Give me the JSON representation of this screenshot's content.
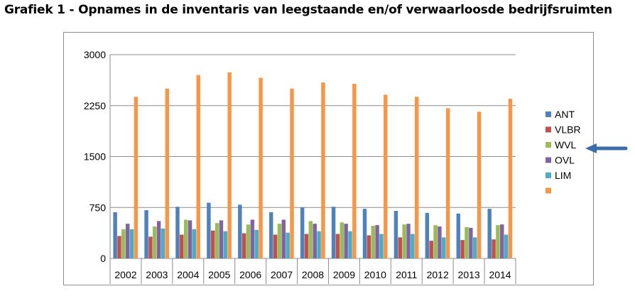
{
  "title": "Grafiek 1 - Opnames in de inventaris van leegstaande en/of verwaarloosde bedrijfsruimten",
  "chart_data": {
    "type": "bar",
    "categories": [
      "2002",
      "2003",
      "2004",
      "2005",
      "2006",
      "2007",
      "2008",
      "2009",
      "2010",
      "2011",
      "2012",
      "2013",
      "2014"
    ],
    "ylim": [
      0,
      3000
    ],
    "yticks": [
      "0",
      "750",
      "1500",
      "2250",
      "3000"
    ],
    "ytick_values": [
      0,
      750,
      1500,
      2250,
      3000
    ],
    "grid": true,
    "legend_position": "right",
    "series": [
      {
        "name": "ANT",
        "color": "#4f81bd",
        "values": [
          680,
          710,
          760,
          820,
          790,
          680,
          750,
          760,
          730,
          700,
          670,
          660,
          730
        ]
      },
      {
        "name": "VLBR",
        "color": "#c0504d",
        "values": [
          330,
          320,
          350,
          410,
          370,
          350,
          360,
          360,
          340,
          310,
          260,
          270,
          280
        ]
      },
      {
        "name": "WVL",
        "color": "#9bbb59",
        "values": [
          430,
          470,
          570,
          520,
          500,
          510,
          550,
          530,
          480,
          500,
          490,
          460,
          490
        ]
      },
      {
        "name": "OVL",
        "color": "#8064a2",
        "values": [
          510,
          550,
          560,
          560,
          570,
          570,
          510,
          510,
          490,
          510,
          470,
          450,
          500
        ]
      },
      {
        "name": "LIM",
        "color": "#4bacc6",
        "values": [
          430,
          440,
          430,
          400,
          420,
          380,
          400,
          400,
          360,
          360,
          310,
          310,
          350
        ]
      },
      {
        "name": "",
        "color": "#f79646",
        "values": [
          2380,
          2500,
          2700,
          2740,
          2660,
          2500,
          2590,
          2570,
          2410,
          2380,
          2210,
          2160,
          2350
        ]
      }
    ]
  },
  "arrow_color": "#3b6ea8"
}
